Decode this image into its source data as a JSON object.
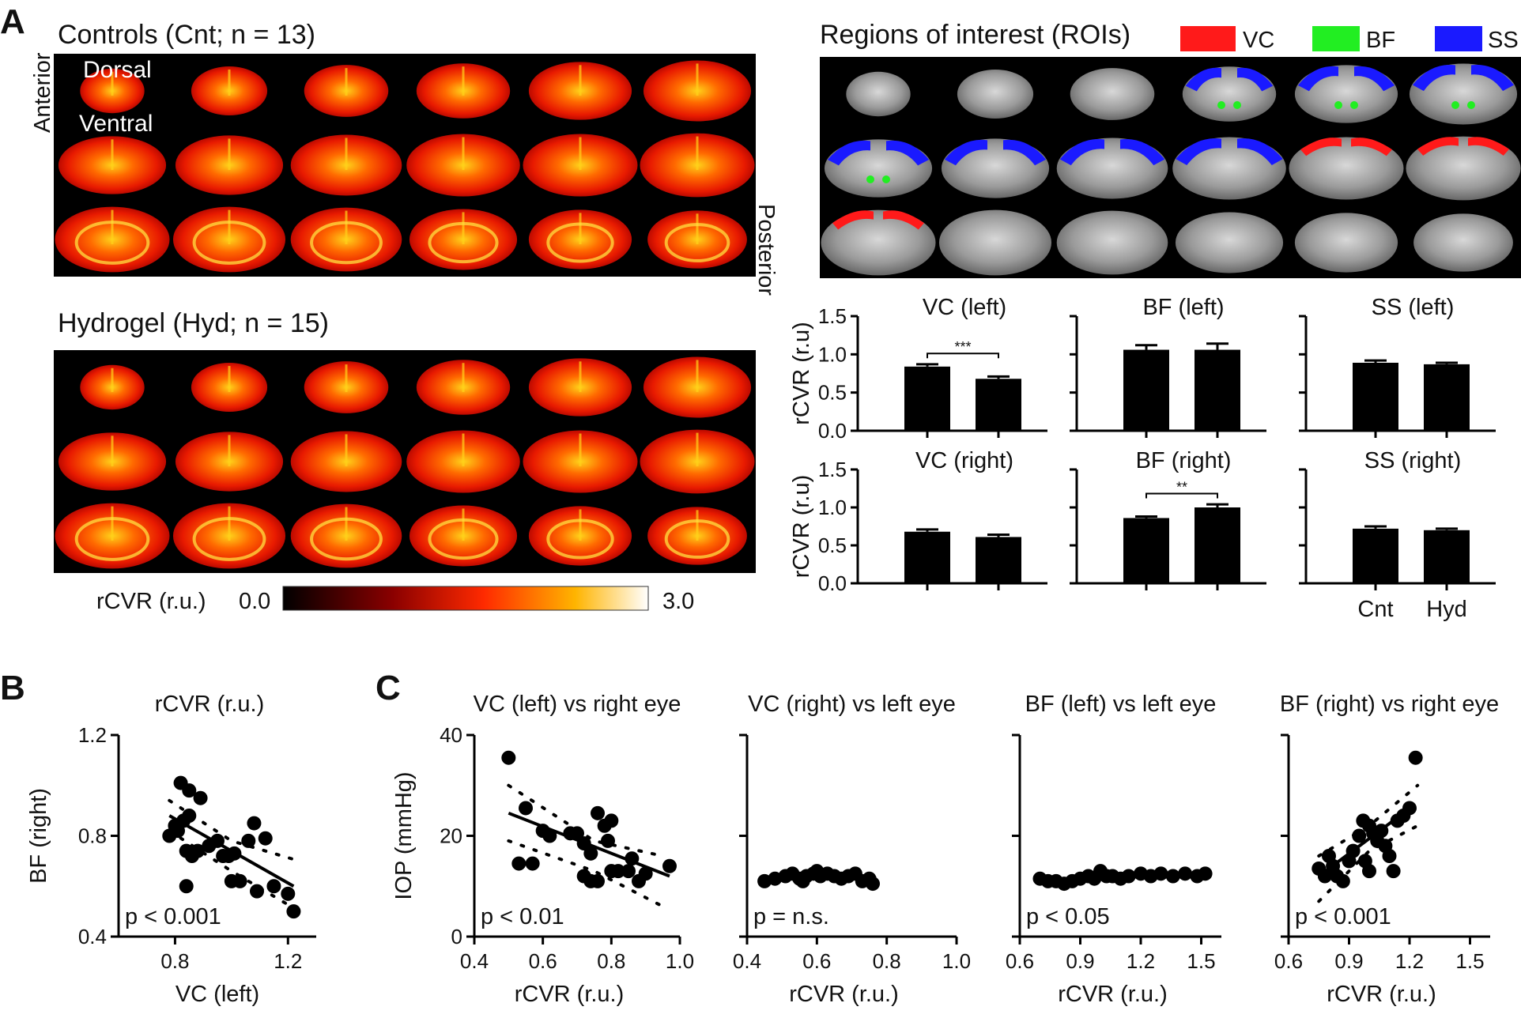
{
  "panel_labels": {
    "a": "A",
    "b": "B",
    "c": "C"
  },
  "panel_a": {
    "controls_title": "Controls (Cnt; n = 13)",
    "hydrogel_title": "Hydrogel (Hyd; n = 15)",
    "orientation": {
      "anterior": "Anterior",
      "posterior": "Posterior",
      "dorsal": "Dorsal",
      "ventral": "Ventral"
    },
    "colorbar": {
      "label": "rCVR (r.u.)",
      "min_label": "0.0",
      "max_label": "3.0",
      "min": 0.0,
      "max": 3.0
    },
    "roi_title": "Regions of interest (ROIs)",
    "roi_legend": [
      {
        "label": "VC",
        "color": "#ff1a1a"
      },
      {
        "label": "BF",
        "color": "#22ee22"
      },
      {
        "label": "SS",
        "color": "#1a1aff"
      }
    ]
  },
  "chart_data": [
    {
      "type": "bar",
      "title": "VC (left)",
      "categories": [
        "Cnt",
        "Hyd"
      ],
      "values": [
        0.84,
        0.68
      ],
      "errors": [
        0.03,
        0.03
      ],
      "ylabel": "rCVR (r.u)",
      "ylim": [
        0,
        1.5
      ],
      "yticks": [
        "0.0",
        "0.5",
        "1.0",
        "1.5"
      ],
      "significance": "***"
    },
    {
      "type": "bar",
      "title": "BF (left)",
      "categories": [
        "Cnt",
        "Hyd"
      ],
      "values": [
        1.06,
        1.06
      ],
      "errors": [
        0.06,
        0.08
      ],
      "ylabel": "",
      "ylim": [
        0,
        1.5
      ],
      "yticks": [],
      "significance": ""
    },
    {
      "type": "bar",
      "title": "SS (left)",
      "categories": [
        "Cnt",
        "Hyd"
      ],
      "values": [
        0.89,
        0.87
      ],
      "errors": [
        0.03,
        0.02
      ],
      "ylabel": "",
      "ylim": [
        0,
        1.5
      ],
      "yticks": [],
      "significance": ""
    },
    {
      "type": "bar",
      "title": "VC (right)",
      "categories": [
        "Cnt",
        "Hyd"
      ],
      "values": [
        0.68,
        0.61
      ],
      "errors": [
        0.03,
        0.03
      ],
      "ylabel": "rCVR (r.u)",
      "ylim": [
        0,
        1.5
      ],
      "yticks": [
        "0.0",
        "0.5",
        "1.0",
        "1.5"
      ],
      "significance": ""
    },
    {
      "type": "bar",
      "title": "BF (right)",
      "categories": [
        "Cnt",
        "Hyd"
      ],
      "values": [
        0.86,
        1.0
      ],
      "errors": [
        0.02,
        0.04
      ],
      "ylabel": "",
      "ylim": [
        0,
        1.5
      ],
      "yticks": [],
      "significance": "**"
    },
    {
      "type": "bar",
      "title": "SS (right)",
      "categories": [
        "Cnt",
        "Hyd"
      ],
      "values": [
        0.72,
        0.7
      ],
      "errors": [
        0.03,
        0.02
      ],
      "ylabel": "",
      "ylim": [
        0,
        1.5
      ],
      "yticks": [],
      "significance": "",
      "xticklabels": [
        "Cnt",
        "Hyd"
      ]
    },
    {
      "type": "scatter",
      "title": "rCVR (r.u.)",
      "xlabel": "VC (left)",
      "ylabel": "BF (right)",
      "xlim": [
        0.6,
        1.3
      ],
      "ylim": [
        0.4,
        1.2
      ],
      "xticks": [
        "0.8",
        "1.2"
      ],
      "yticks": [
        "0.4",
        "0.8",
        "1.2"
      ],
      "pvalue": "p < 0.001",
      "points": [
        [
          0.82,
          1.01
        ],
        [
          0.85,
          0.98
        ],
        [
          0.89,
          0.95
        ],
        [
          0.78,
          0.8
        ],
        [
          0.8,
          0.84
        ],
        [
          0.83,
          0.86
        ],
        [
          0.85,
          0.88
        ],
        [
          0.81,
          0.82
        ],
        [
          0.84,
          0.74
        ],
        [
          0.86,
          0.72
        ],
        [
          0.88,
          0.74
        ],
        [
          0.92,
          0.76
        ],
        [
          0.95,
          0.78
        ],
        [
          0.97,
          0.72
        ],
        [
          0.99,
          0.72
        ],
        [
          1.01,
          0.73
        ],
        [
          1.0,
          0.62
        ],
        [
          1.03,
          0.62
        ],
        [
          1.06,
          0.78
        ],
        [
          1.08,
          0.85
        ],
        [
          1.12,
          0.79
        ],
        [
          1.09,
          0.58
        ],
        [
          1.15,
          0.6
        ],
        [
          1.2,
          0.57
        ],
        [
          1.22,
          0.5
        ],
        [
          0.84,
          0.6
        ]
      ],
      "fit": [
        [
          0.78,
          0.88
        ],
        [
          1.22,
          0.6
        ]
      ],
      "ci_upper": [
        [
          0.78,
          0.94
        ],
        [
          1.0,
          0.78
        ],
        [
          1.24,
          0.7
        ]
      ],
      "ci_lower": [
        [
          0.78,
          0.82
        ],
        [
          1.0,
          0.66
        ],
        [
          1.24,
          0.5
        ]
      ]
    },
    {
      "type": "scatter",
      "title": "VC (left) vs right eye",
      "xlabel": "rCVR (r.u.)",
      "ylabel": "IOP (mmHg)",
      "xlim": [
        0.4,
        1.0
      ],
      "ylim": [
        0,
        40
      ],
      "xticks": [
        "0.4",
        "0.6",
        "0.8",
        "1.0"
      ],
      "yticks": [
        "0",
        "20",
        "40"
      ],
      "pvalue": "p < 0.01",
      "points": [
        [
          0.5,
          35.5
        ],
        [
          0.55,
          25.5
        ],
        [
          0.53,
          14.5
        ],
        [
          0.57,
          14.5
        ],
        [
          0.6,
          21
        ],
        [
          0.62,
          20
        ],
        [
          0.68,
          20.5
        ],
        [
          0.7,
          20.5
        ],
        [
          0.72,
          18.5
        ],
        [
          0.74,
          16.5
        ],
        [
          0.76,
          24.5
        ],
        [
          0.78,
          22
        ],
        [
          0.8,
          23
        ],
        [
          0.79,
          19
        ],
        [
          0.72,
          12
        ],
        [
          0.74,
          11
        ],
        [
          0.76,
          11
        ],
        [
          0.8,
          13
        ],
        [
          0.82,
          13
        ],
        [
          0.85,
          13
        ],
        [
          0.86,
          15.5
        ],
        [
          0.88,
          11
        ],
        [
          0.9,
          12.5
        ],
        [
          0.97,
          14
        ]
      ],
      "fit": [
        [
          0.5,
          24.5
        ],
        [
          0.97,
          12
        ]
      ],
      "ci_upper": [
        [
          0.5,
          30
        ],
        [
          0.75,
          19
        ],
        [
          0.95,
          16
        ]
      ],
      "ci_lower": [
        [
          0.5,
          19
        ],
        [
          0.75,
          13
        ],
        [
          0.95,
          6
        ]
      ]
    },
    {
      "type": "scatter",
      "title": "VC (right) vs left eye",
      "xlabel": "rCVR (r.u.)",
      "ylabel": "",
      "xlim": [
        0.4,
        1.0
      ],
      "ylim": [
        0,
        40
      ],
      "xticks": [
        "0.4",
        "0.6",
        "0.8",
        "1.0"
      ],
      "yticks": [],
      "pvalue": "p = n.s.",
      "points": [
        [
          0.45,
          11
        ],
        [
          0.48,
          11.5
        ],
        [
          0.51,
          12
        ],
        [
          0.53,
          12.5
        ],
        [
          0.55,
          11.5
        ],
        [
          0.57,
          12
        ],
        [
          0.59,
          12.5
        ],
        [
          0.6,
          13
        ],
        [
          0.61,
          12
        ],
        [
          0.63,
          12.5
        ],
        [
          0.65,
          12
        ],
        [
          0.67,
          11.5
        ],
        [
          0.69,
          12
        ],
        [
          0.71,
          12.5
        ],
        [
          0.73,
          11
        ],
        [
          0.75,
          11.5
        ],
        [
          0.76,
          10.5
        ],
        [
          0.56,
          11
        ]
      ],
      "fit": [
        [
          0.45,
          11.8
        ],
        [
          0.77,
          11.6
        ]
      ],
      "ci_upper": [],
      "ci_lower": []
    },
    {
      "type": "scatter",
      "title": "BF (left) vs left eye",
      "xlabel": "rCVR (r.u.)",
      "ylabel": "",
      "xlim": [
        0.6,
        1.6
      ],
      "ylim": [
        0,
        40
      ],
      "xticks": [
        "0.6",
        "0.9",
        "1.2",
        "1.5"
      ],
      "yticks": [],
      "pvalue": "p < 0.05",
      "points": [
        [
          0.7,
          11.5
        ],
        [
          0.74,
          11
        ],
        [
          0.78,
          11
        ],
        [
          0.82,
          10.5
        ],
        [
          0.86,
          11
        ],
        [
          0.9,
          11.5
        ],
        [
          0.94,
          12
        ],
        [
          0.97,
          11.5
        ],
        [
          1.0,
          13
        ],
        [
          1.03,
          12
        ],
        [
          1.06,
          12
        ],
        [
          1.1,
          11.5
        ],
        [
          1.14,
          12
        ],
        [
          1.2,
          12.5
        ],
        [
          1.25,
          12
        ],
        [
          1.3,
          12.5
        ],
        [
          1.36,
          12
        ],
        [
          1.42,
          12.5
        ],
        [
          1.48,
          12
        ],
        [
          1.52,
          12.5
        ]
      ],
      "fit": [
        [
          0.7,
          11.2
        ],
        [
          1.52,
          12.6
        ]
      ],
      "ci_upper": [],
      "ci_lower": []
    },
    {
      "type": "scatter",
      "title": "BF (right) vs right eye",
      "xlabel": "rCVR (r.u.)",
      "ylabel": "",
      "xlim": [
        0.6,
        1.6
      ],
      "ylim": [
        0,
        40
      ],
      "xticks": [
        "0.6",
        "0.9",
        "1.2",
        "1.5"
      ],
      "yticks": [],
      "pvalue": "p < 0.001",
      "points": [
        [
          0.75,
          13.5
        ],
        [
          0.78,
          12
        ],
        [
          0.8,
          16
        ],
        [
          0.82,
          14
        ],
        [
          0.84,
          12
        ],
        [
          0.87,
          11
        ],
        [
          0.9,
          15
        ],
        [
          0.92,
          17
        ],
        [
          0.95,
          20
        ],
        [
          0.97,
          23
        ],
        [
          1.0,
          22
        ],
        [
          1.02,
          20.5
        ],
        [
          1.04,
          19
        ],
        [
          1.06,
          21
        ],
        [
          1.08,
          18
        ],
        [
          1.1,
          16
        ],
        [
          1.12,
          13
        ],
        [
          1.14,
          23
        ],
        [
          1.17,
          24
        ],
        [
          1.2,
          25.5
        ],
        [
          1.23,
          35.5
        ],
        [
          0.98,
          15
        ],
        [
          1.0,
          13
        ]
      ],
      "fit": [
        [
          0.75,
          12
        ],
        [
          1.22,
          26
        ]
      ],
      "ci_upper": [
        [
          0.75,
          16
        ],
        [
          1.0,
          22
        ],
        [
          1.24,
          30
        ]
      ],
      "ci_lower": [
        [
          0.75,
          7
        ],
        [
          1.0,
          17
        ],
        [
          1.24,
          22
        ]
      ]
    }
  ]
}
